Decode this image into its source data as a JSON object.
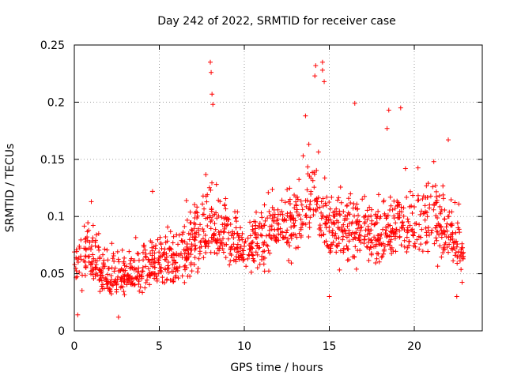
{
  "chart_data": {
    "type": "scatter",
    "title": "Day 242 of 2022, SRMTID for receiver case",
    "xlabel": "GPS time / hours",
    "ylabel": "SRMTID / TECUs",
    "xlim": [
      0,
      24
    ],
    "ylim": [
      0,
      0.25
    ],
    "x_ticks": [
      0,
      5,
      10,
      15,
      20
    ],
    "x_tick_labels": [
      "0",
      "5",
      "10",
      "15",
      "20"
    ],
    "y_ticks": [
      0,
      0.05,
      0.1,
      0.15,
      0.2,
      0.25
    ],
    "y_tick_labels": [
      "0",
      "0.05",
      "0.1",
      "0.15",
      "0.2",
      "0.25"
    ],
    "grid": true,
    "marker": "+",
    "series_color": "#ff0000",
    "x_range_observed": [
      0,
      22.9
    ],
    "envelope": [
      {
        "t": 0,
        "lo": 0.03,
        "mid": 0.06,
        "hi": 0.11
      },
      {
        "t": 1,
        "lo": 0.035,
        "mid": 0.065,
        "hi": 0.11
      },
      {
        "t": 2,
        "lo": 0.025,
        "mid": 0.045,
        "hi": 0.09
      },
      {
        "t": 3,
        "lo": 0.025,
        "mid": 0.045,
        "hi": 0.08
      },
      {
        "t": 4,
        "lo": 0.025,
        "mid": 0.05,
        "hi": 0.09
      },
      {
        "t": 5,
        "lo": 0.035,
        "mid": 0.065,
        "hi": 0.1
      },
      {
        "t": 6,
        "lo": 0.035,
        "mid": 0.06,
        "hi": 0.1
      },
      {
        "t": 7,
        "lo": 0.04,
        "mid": 0.075,
        "hi": 0.13
      },
      {
        "t": 8,
        "lo": 0.05,
        "mid": 0.085,
        "hi": 0.16
      },
      {
        "t": 9,
        "lo": 0.05,
        "mid": 0.085,
        "hi": 0.14
      },
      {
        "t": 10,
        "lo": 0.045,
        "mid": 0.07,
        "hi": 0.11
      },
      {
        "t": 11,
        "lo": 0.045,
        "mid": 0.08,
        "hi": 0.12
      },
      {
        "t": 12,
        "lo": 0.05,
        "mid": 0.095,
        "hi": 0.14
      },
      {
        "t": 13,
        "lo": 0.05,
        "mid": 0.09,
        "hi": 0.14
      },
      {
        "t": 14,
        "lo": 0.08,
        "mid": 0.125,
        "hi": 0.19
      },
      {
        "t": 15,
        "lo": 0.05,
        "mid": 0.085,
        "hi": 0.13
      },
      {
        "t": 16,
        "lo": 0.05,
        "mid": 0.09,
        "hi": 0.14
      },
      {
        "t": 17,
        "lo": 0.05,
        "mid": 0.085,
        "hi": 0.13
      },
      {
        "t": 18,
        "lo": 0.05,
        "mid": 0.085,
        "hi": 0.14
      },
      {
        "t": 19,
        "lo": 0.05,
        "mid": 0.09,
        "hi": 0.14
      },
      {
        "t": 20,
        "lo": 0.05,
        "mid": 0.095,
        "hi": 0.15
      },
      {
        "t": 21,
        "lo": 0.05,
        "mid": 0.1,
        "hi": 0.16
      },
      {
        "t": 22,
        "lo": 0.045,
        "mid": 0.085,
        "hi": 0.14
      },
      {
        "t": 22.9,
        "lo": 0.035,
        "mid": 0.07,
        "hi": 0.11
      }
    ],
    "notable_points": [
      {
        "x": 0.2,
        "y": 0.014
      },
      {
        "x": 2.6,
        "y": 0.012
      },
      {
        "x": 8.0,
        "y": 0.235
      },
      {
        "x": 8.05,
        "y": 0.226
      },
      {
        "x": 8.1,
        "y": 0.207
      },
      {
        "x": 8.15,
        "y": 0.198
      },
      {
        "x": 14.2,
        "y": 0.232
      },
      {
        "x": 14.6,
        "y": 0.235
      },
      {
        "x": 14.6,
        "y": 0.228
      },
      {
        "x": 14.15,
        "y": 0.223
      },
      {
        "x": 14.7,
        "y": 0.218
      },
      {
        "x": 13.6,
        "y": 0.188
      },
      {
        "x": 16.5,
        "y": 0.199
      },
      {
        "x": 18.5,
        "y": 0.193
      },
      {
        "x": 19.2,
        "y": 0.195
      },
      {
        "x": 18.4,
        "y": 0.177
      },
      {
        "x": 15.0,
        "y": 0.03
      },
      {
        "x": 22.5,
        "y": 0.03
      },
      {
        "x": 1.0,
        "y": 0.113
      },
      {
        "x": 4.6,
        "y": 0.122
      },
      {
        "x": 22.0,
        "y": 0.167
      }
    ]
  }
}
